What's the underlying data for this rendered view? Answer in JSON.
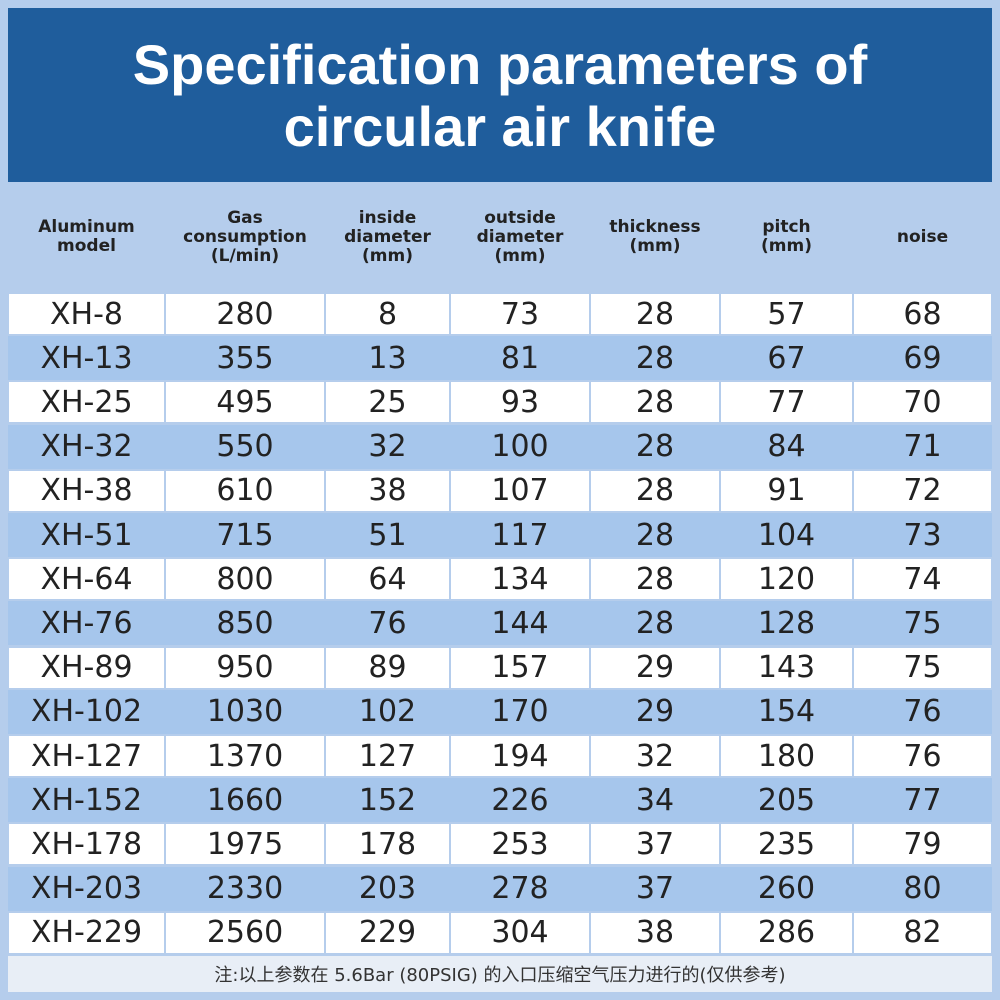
{
  "title": [
    "Specification parameters of",
    "circular air knife"
  ],
  "table": {
    "headers": [
      [
        "Aluminum",
        "model"
      ],
      [
        "Gas",
        "consumption",
        "(L/min)"
      ],
      [
        "inside",
        "diameter",
        "(mm)"
      ],
      [
        "outside",
        "diameter",
        "(mm)"
      ],
      [
        "thickness",
        "(mm)"
      ],
      [
        "pitch",
        "(mm)"
      ],
      [
        "noise"
      ]
    ],
    "rows": [
      [
        "XH-8",
        280,
        8,
        73,
        28,
        57,
        68
      ],
      [
        "XH-13",
        355,
        13,
        81,
        28,
        67,
        69
      ],
      [
        "XH-25",
        495,
        25,
        93,
        28,
        77,
        70
      ],
      [
        "XH-32",
        550,
        32,
        100,
        28,
        84,
        71
      ],
      [
        "XH-38",
        610,
        38,
        107,
        28,
        91,
        72
      ],
      [
        "XH-51",
        715,
        51,
        117,
        28,
        104,
        73
      ],
      [
        "XH-64",
        800,
        64,
        134,
        28,
        120,
        74
      ],
      [
        "XH-76",
        850,
        76,
        144,
        28,
        128,
        75
      ],
      [
        "XH-89",
        950,
        89,
        157,
        29,
        143,
        75
      ],
      [
        "XH-102",
        1030,
        102,
        170,
        29,
        154,
        76
      ],
      [
        "XH-127",
        1370,
        127,
        194,
        32,
        180,
        76
      ],
      [
        "XH-152",
        1660,
        152,
        226,
        34,
        205,
        77
      ],
      [
        "XH-178",
        1975,
        178,
        253,
        37,
        235,
        79
      ],
      [
        "XH-203",
        2330,
        203,
        278,
        37,
        260,
        80
      ],
      [
        "XH-229",
        2560,
        229,
        304,
        38,
        286,
        82
      ]
    ]
  },
  "note": "注:以上参数在 5.6Bar (80PSIG) 的入口压缩空气压力进行的(仅供参考)"
}
